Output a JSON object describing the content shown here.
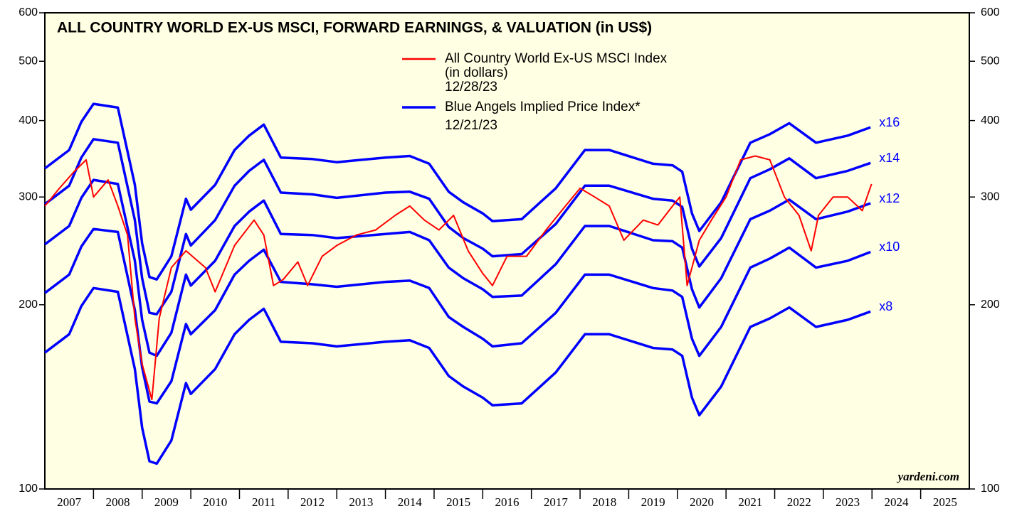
{
  "chart_data": {
    "type": "line",
    "title": "ALL COUNTRY WORLD EX-US MSCI, FORWARD EARNINGS, & VALUATION (in US$)",
    "source": "yardeni.com",
    "log_y": true,
    "xlim": [
      2007,
      2026
    ],
    "ylim": [
      100,
      600
    ],
    "yticks": [
      100,
      200,
      300,
      400,
      500,
      600
    ],
    "y2lim": [
      100,
      600
    ],
    "y2ticks": [
      100,
      200,
      300,
      400,
      500,
      600
    ],
    "xticks": [
      {
        "value": 2007.5,
        "label": "2007"
      },
      {
        "value": 2008.5,
        "label": "2008"
      },
      {
        "value": 2009.5,
        "label": "2009"
      },
      {
        "value": 2010.5,
        "label": "2010"
      },
      {
        "value": 2011.5,
        "label": "2011"
      },
      {
        "value": 2012.5,
        "label": "2012"
      },
      {
        "value": 2013.5,
        "label": "2013"
      },
      {
        "value": 2014.5,
        "label": "2014"
      },
      {
        "value": 2015.5,
        "label": "2015"
      },
      {
        "value": 2016.5,
        "label": "2016"
      },
      {
        "value": 2017.5,
        "label": "2017"
      },
      {
        "value": 2018.5,
        "label": "2018"
      },
      {
        "value": 2019.5,
        "label": "2019"
      },
      {
        "value": 2020.5,
        "label": "2020"
      },
      {
        "value": 2021.5,
        "label": "2021"
      },
      {
        "value": 2022.5,
        "label": "2022"
      },
      {
        "value": 2023.5,
        "label": "2023"
      },
      {
        "value": 2024.5,
        "label": "2024"
      },
      {
        "value": 2025.5,
        "label": "2025"
      }
    ],
    "year_boundaries": [
      2008,
      2009,
      2010,
      2011,
      2012,
      2013,
      2014,
      2015,
      2016,
      2017,
      2018,
      2019,
      2020,
      2021,
      2022,
      2023,
      2024,
      2025
    ],
    "band_legend": {
      "name": "Blue Angels Implied Price Index*",
      "note": [
        "12/21/23"
      ],
      "color": "#0000ff"
    },
    "x": [
      2007.0,
      2007.5,
      2007.75,
      2008.0,
      2008.5,
      2008.85,
      2009.0,
      2009.15,
      2009.3,
      2009.6,
      2009.9,
      2010.0,
      2010.5,
      2010.9,
      2011.2,
      2011.5,
      2011.85,
      2012.5,
      2013.0,
      2014.0,
      2014.5,
      2014.9,
      2015.3,
      2015.6,
      2016.0,
      2016.2,
      2016.8,
      2017.5,
      2018.1,
      2018.6,
      2019.5,
      2019.9,
      2020.1,
      2020.3,
      2020.45,
      2020.9,
      2021.5,
      2021.9,
      2022.3,
      2022.85,
      2023.5,
      2023.97
    ],
    "series": [
      {
        "name": "x16",
        "color": "#0000ff",
        "values": [
          334,
          358,
          398,
          426,
          420,
          314,
          252,
          222,
          220,
          240,
          298,
          286,
          314,
          358,
          378,
          394,
          348,
          346,
          342,
          348,
          350,
          340,
          306,
          294,
          282,
          274,
          276,
          310,
          358,
          358,
          340,
          338,
          330,
          282,
          264,
          294,
          368,
          380,
          396,
          368,
          378,
          390
        ]
      },
      {
        "name": "x14",
        "color": "#0000ff",
        "values": [
          292,
          313,
          348,
          373,
          368,
          275,
          221,
          194,
          193,
          210,
          261,
          250,
          275,
          313,
          331,
          345,
          305,
          303,
          299,
          305,
          306,
          298,
          268,
          257,
          247,
          240,
          242,
          271,
          313,
          313,
          298,
          296,
          289,
          247,
          231,
          257,
          322,
          333,
          347,
          322,
          331,
          341
        ]
      },
      {
        "name": "x12",
        "color": "#0000ff",
        "values": [
          251,
          269,
          299,
          320,
          315,
          236,
          189,
          167,
          165,
          180,
          224,
          215,
          236,
          269,
          284,
          296,
          261,
          260,
          257,
          261,
          263,
          255,
          230,
          221,
          212,
          206,
          207,
          233,
          269,
          269,
          255,
          254,
          248,
          212,
          198,
          221,
          276,
          285,
          297,
          276,
          284,
          293
        ]
      },
      {
        "name": "x10",
        "color": "#0000ff",
        "values": [
          209,
          224,
          249,
          266,
          263,
          196,
          158,
          139,
          138,
          150,
          186,
          179,
          196,
          224,
          236,
          246,
          218,
          216,
          214,
          218,
          219,
          213,
          191,
          184,
          176,
          171,
          173,
          194,
          224,
          224,
          213,
          211,
          206,
          176,
          165,
          184,
          230,
          238,
          248,
          230,
          236,
          244
        ]
      },
      {
        "name": "x8",
        "color": "#0000ff",
        "values": [
          167,
          179,
          199,
          213,
          210,
          157,
          126,
          111,
          110,
          120,
          149,
          143,
          157,
          179,
          189,
          197,
          174,
          173,
          171,
          174,
          175,
          170,
          153,
          147,
          141,
          137,
          138,
          155,
          179,
          179,
          170,
          169,
          165,
          141,
          132,
          147,
          184,
          190,
          198,
          184,
          189,
          195
        ]
      },
      {
        "name": "All Country World Ex-US MSCI Index",
        "note": [
          "(in dollars)",
          "12/28/23"
        ],
        "color": "#ff0000",
        "x": [
          2007.0,
          2007.3,
          2007.6,
          2007.85,
          2008.0,
          2008.3,
          2008.5,
          2008.7,
          2008.85,
          2009.0,
          2009.2,
          2009.35,
          2009.6,
          2009.9,
          2010.3,
          2010.5,
          2010.9,
          2011.3,
          2011.5,
          2011.7,
          2011.9,
          2012.2,
          2012.4,
          2012.7,
          2013.0,
          2013.4,
          2013.8,
          2014.2,
          2014.5,
          2014.8,
          2015.1,
          2015.4,
          2015.7,
          2016.0,
          2016.2,
          2016.5,
          2016.9,
          2017.3,
          2017.7,
          2018.0,
          2018.3,
          2018.6,
          2018.9,
          2019.3,
          2019.6,
          2019.9,
          2020.05,
          2020.2,
          2020.45,
          2020.7,
          2021.0,
          2021.3,
          2021.6,
          2021.9,
          2022.2,
          2022.5,
          2022.75,
          2022.9,
          2023.2,
          2023.5,
          2023.8,
          2023.99
        ],
        "values": [
          290,
          310,
          330,
          345,
          300,
          320,
          290,
          260,
          190,
          160,
          140,
          190,
          230,
          245,
          230,
          210,
          250,
          275,
          260,
          215,
          220,
          235,
          215,
          240,
          250,
          260,
          265,
          280,
          290,
          275,
          265,
          280,
          245,
          225,
          215,
          240,
          240,
          265,
          290,
          310,
          300,
          290,
          255,
          275,
          270,
          290,
          300,
          215,
          255,
          275,
          300,
          345,
          350,
          345,
          300,
          280,
          245,
          280,
          300,
          300,
          285,
          315
        ]
      }
    ]
  }
}
